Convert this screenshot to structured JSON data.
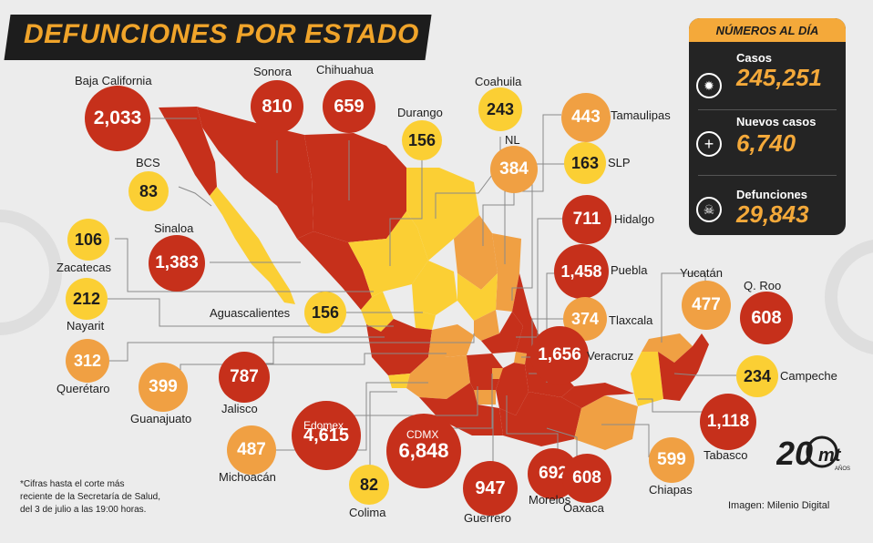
{
  "title": "DEFUNCIONES POR ESTADO",
  "panel": {
    "header": "NÚMEROS AL DÍA",
    "stats": [
      {
        "label": "Casos",
        "value": "245,251",
        "icon": "virus-icon"
      },
      {
        "label": "Nuevos casos",
        "value": "6,740",
        "icon": "plus-icon"
      },
      {
        "label": "Defunciones",
        "value": "29,843",
        "icon": "skull-icon"
      }
    ]
  },
  "states": [
    {
      "name": "Baja California",
      "value": "2,033",
      "level": "red"
    },
    {
      "name": "Sonora",
      "value": "810",
      "level": "red"
    },
    {
      "name": "Chihuahua",
      "value": "659",
      "level": "red"
    },
    {
      "name": "Durango",
      "value": "156",
      "level": "yellow"
    },
    {
      "name": "Coahuila",
      "value": "243",
      "level": "yellow"
    },
    {
      "name": "NL",
      "value": "384",
      "level": "orange"
    },
    {
      "name": "Tamaulipas",
      "value": "443",
      "level": "orange"
    },
    {
      "name": "SLP",
      "value": "163",
      "level": "yellow"
    },
    {
      "name": "BCS",
      "value": "83",
      "level": "yellow"
    },
    {
      "name": "Sinaloa",
      "value": "1,383",
      "level": "red"
    },
    {
      "name": "Zacatecas",
      "value": "106",
      "level": "yellow"
    },
    {
      "name": "Nayarit",
      "value": "212",
      "level": "yellow"
    },
    {
      "name": "Querétaro",
      "value": "312",
      "level": "orange"
    },
    {
      "name": "Aguascalientes",
      "value": "156",
      "level": "yellow"
    },
    {
      "name": "Guanajuato",
      "value": "399",
      "level": "orange"
    },
    {
      "name": "Jalisco",
      "value": "787",
      "level": "red"
    },
    {
      "name": "Michoacán",
      "value": "487",
      "level": "orange"
    },
    {
      "name": "Colima",
      "value": "82",
      "level": "yellow"
    },
    {
      "name": "Edomex",
      "value": "4,615",
      "level": "red"
    },
    {
      "name": "CDMX",
      "value": "6,848",
      "level": "red"
    },
    {
      "name": "Guerrero",
      "value": "947",
      "level": "red"
    },
    {
      "name": "Morelos",
      "value": "692",
      "level": "red"
    },
    {
      "name": "Oaxaca",
      "value": "608",
      "level": "red"
    },
    {
      "name": "Chiapas",
      "value": "599",
      "level": "orange"
    },
    {
      "name": "Hidalgo",
      "value": "711",
      "level": "red"
    },
    {
      "name": "Puebla",
      "value": "1,458",
      "level": "red"
    },
    {
      "name": "Tlaxcala",
      "value": "374",
      "level": "orange"
    },
    {
      "name": "Veracruz",
      "value": "1,656",
      "level": "red"
    },
    {
      "name": "Yucatán",
      "value": "477",
      "level": "orange"
    },
    {
      "name": "Q. Roo",
      "value": "608",
      "level": "red"
    },
    {
      "name": "Campeche",
      "value": "234",
      "level": "yellow"
    },
    {
      "name": "Tabasco",
      "value": "1,118",
      "level": "red"
    }
  ],
  "colors": {
    "red": "#c6301b",
    "orange": "#f0a043",
    "yellow": "#fbcf34",
    "dark": "#1d1d1d",
    "accent": "#f4a93a"
  },
  "note": "*Cifras hasta el corte más\nreciente de la Secretaría de Salud,\ndel 3 de julio a las 19:00 horas.",
  "credit": "Imagen: Milenio Digital",
  "logo": {
    "text": "20",
    "sub": "mt",
    "small": "AÑOS"
  }
}
